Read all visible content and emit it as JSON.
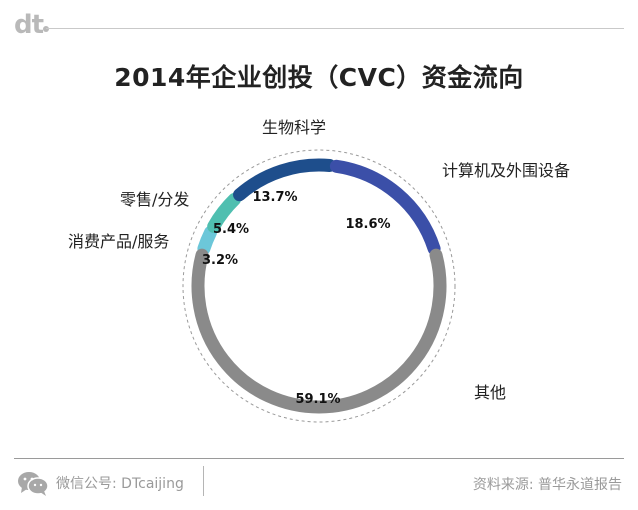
{
  "header": {
    "logo": "dt"
  },
  "chart_data": {
    "type": "pie",
    "title": "2014年企业创投（CVC）资金流向",
    "series": [
      {
        "label": "消费产品/服务",
        "value": 3.2,
        "value_label": "3.2%",
        "color": "#6cc7d9"
      },
      {
        "label": "零售/分发",
        "value": 5.4,
        "value_label": "5.4%",
        "color": "#4fbfb0"
      },
      {
        "label": "生物科学",
        "value": 13.7,
        "value_label": "13.7%",
        "color": "#1e4e8c"
      },
      {
        "label": "计算机及外围设备",
        "value": 18.6,
        "value_label": "18.6%",
        "color": "#3b4fa8"
      },
      {
        "label": "其他",
        "value": 59.1,
        "value_label": "59.1%",
        "color": "#8a8a8a"
      }
    ]
  },
  "footer": {
    "wechat": "微信公号: DTcaijing",
    "source": "资料来源: 普华永道报告"
  }
}
